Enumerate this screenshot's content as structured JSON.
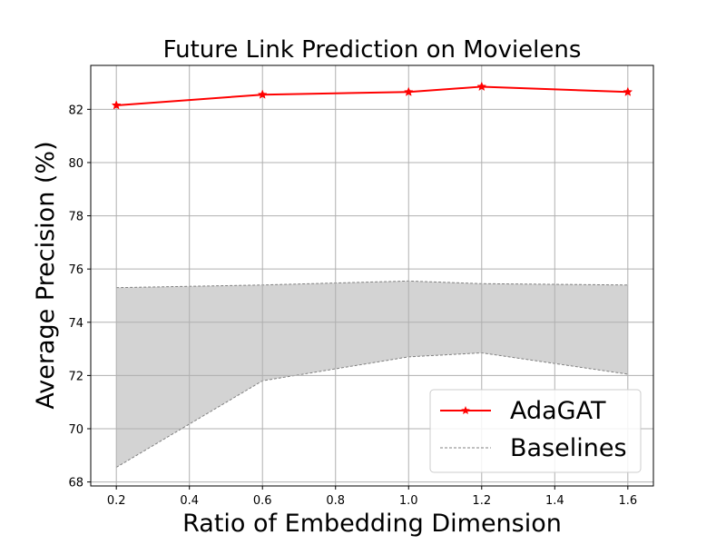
{
  "chart_data": {
    "type": "line",
    "title": "Future Link Prediction on Movielens",
    "xlabel": "Ratio of Embedding Dimension",
    "ylabel": "Average Precision (%)",
    "xlim": [
      0.13,
      1.67
    ],
    "ylim": [
      67.85,
      83.65
    ],
    "xticks": [
      0.2,
      0.4,
      0.6,
      0.8,
      1.0,
      1.2,
      1.4,
      1.6
    ],
    "xtick_labels": [
      "0.2",
      "0.4",
      "0.6",
      "0.8",
      "1.0",
      "1.2",
      "1.4",
      "1.6"
    ],
    "yticks": [
      68,
      70,
      72,
      74,
      76,
      78,
      80,
      82
    ],
    "ytick_labels": [
      "68",
      "70",
      "72",
      "74",
      "76",
      "78",
      "80",
      "82"
    ],
    "grid": true,
    "legend_position": "lower-right",
    "series": [
      {
        "name": "AdaGAT",
        "color": "#ff0000",
        "marker": "star",
        "x": [
          0.2,
          0.6,
          1.0,
          1.2,
          1.6
        ],
        "y": [
          82.15,
          82.55,
          82.65,
          82.85,
          82.65
        ]
      }
    ],
    "band": {
      "name": "Baselines",
      "color": "#808080",
      "fill": "#d3d3d3",
      "x": [
        0.2,
        0.6,
        1.0,
        1.2,
        1.6
      ],
      "upper": [
        75.3,
        75.4,
        75.55,
        75.45,
        75.4
      ],
      "lower": [
        68.55,
        71.8,
        72.7,
        72.85,
        72.05
      ]
    }
  }
}
